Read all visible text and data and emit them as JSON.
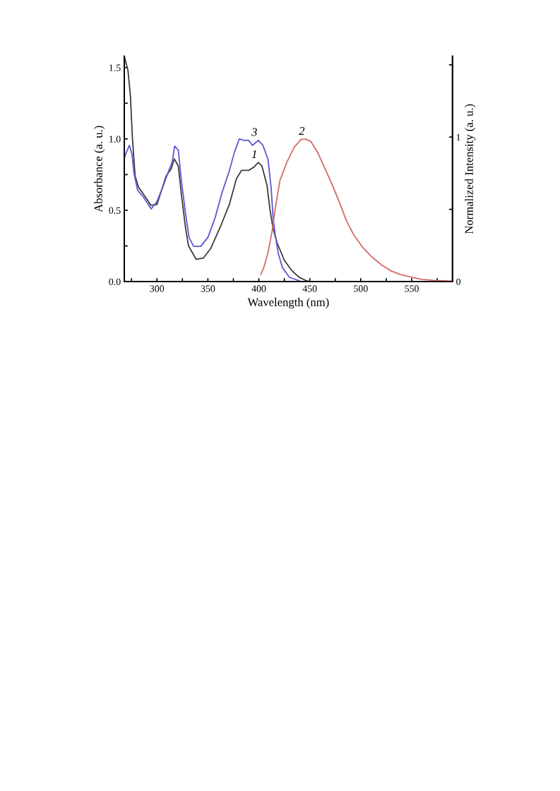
{
  "chart_data": {
    "type": "line",
    "xlabel": "Wavelength (nm)",
    "ylabel": "Absorbance (a. u.)",
    "y2label": "Normalized Intensity (a. u.)",
    "xlim": [
      268,
      590
    ],
    "xticks": [
      {
        "value": 275,
        "label": null
      },
      300,
      {
        "value": 325,
        "label": null
      },
      350,
      {
        "value": 375,
        "label": null
      },
      400,
      {
        "value": 425,
        "label": null
      },
      450,
      {
        "value": 475,
        "label": null
      },
      500,
      {
        "value": 525,
        "label": null
      },
      550,
      {
        "value": 575,
        "label": null
      }
    ],
    "ylim": [
      0,
      1.58
    ],
    "yticks": [
      {
        "value": 0,
        "label": "0.0"
      },
      {
        "value": 0.25,
        "label": null
      },
      0.5,
      {
        "value": 0.75,
        "label": null
      },
      {
        "value": 1,
        "label": "1.0"
      },
      {
        "value": 1.25,
        "label": null
      },
      1.5
    ],
    "y2lim": [
      0,
      1.56
    ],
    "y2ticks": [
      0,
      {
        "value": 0.5,
        "label": null
      },
      1,
      {
        "value": 1.5,
        "label": null
      }
    ],
    "grid": false,
    "legend": false,
    "marker": "none",
    "line_style": "solid",
    "series": [
      {
        "name": "1",
        "color": "#3c3c3c",
        "x": [
          268,
          271.6,
          274,
          276,
          278.6,
          282,
          289,
          294,
          300,
          304.5,
          309,
          314,
          317,
          321,
          324,
          328,
          331,
          338.5,
          345.5,
          352.6,
          362,
          371,
          378,
          383,
          390,
          394.8,
          399.5,
          403,
          408,
          411,
          414,
          418,
          425,
          432,
          439,
          446,
          450
        ],
        "values": [
          1.58,
          1.48,
          1.3,
          1.0,
          0.74,
          0.66,
          0.59,
          0.535,
          0.54,
          0.64,
          0.74,
          0.79,
          0.86,
          0.81,
          0.61,
          0.38,
          0.25,
          0.156,
          0.165,
          0.23,
          0.38,
          0.54,
          0.72,
          0.78,
          0.78,
          0.8,
          0.835,
          0.81,
          0.675,
          0.5,
          0.37,
          0.27,
          0.15,
          0.08,
          0.033,
          0.008,
          0
        ]
      },
      {
        "name": "3",
        "color": "#5a5ad0",
        "x": [
          268,
          270,
          273,
          275.6,
          277.5,
          281,
          287,
          291.5,
          294.4,
          300,
          305.6,
          311.5,
          315,
          317.4,
          321,
          324,
          328,
          331.5,
          336,
          343,
          350,
          357,
          364,
          371,
          376,
          380.8,
          385.4,
          390,
          393.7,
          399.5,
          404,
          409,
          412,
          414,
          416,
          419,
          423,
          430,
          440
        ],
        "values": [
          0.865,
          0.906,
          0.955,
          0.89,
          0.76,
          0.64,
          0.59,
          0.54,
          0.51,
          0.56,
          0.66,
          0.775,
          0.84,
          0.95,
          0.92,
          0.71,
          0.48,
          0.31,
          0.247,
          0.247,
          0.31,
          0.445,
          0.626,
          0.775,
          0.906,
          1.0,
          0.99,
          0.99,
          0.955,
          0.99,
          0.955,
          0.857,
          0.66,
          0.45,
          0.33,
          0.2,
          0.1,
          0.03,
          0.005
        ]
      },
      {
        "name": "2",
        "color": "#d46a6a",
        "axis": "y2",
        "x": [
          402,
          405,
          409,
          413,
          416,
          420.7,
          427.7,
          434.7,
          441.6,
          446,
          451,
          458,
          465,
          472,
          479,
          486,
          493,
          502,
          511,
          520.7,
          530,
          539,
          548.6,
          560,
          572,
          590
        ],
        "values": [
          0.05,
          0.1,
          0.2,
          0.35,
          0.5,
          0.7,
          0.83,
          0.93,
          0.985,
          0.985,
          0.97,
          0.89,
          0.78,
          0.67,
          0.55,
          0.42,
          0.325,
          0.236,
          0.17,
          0.114,
          0.073,
          0.049,
          0.033,
          0.016,
          0.008,
          0.003
        ]
      }
    ]
  }
}
